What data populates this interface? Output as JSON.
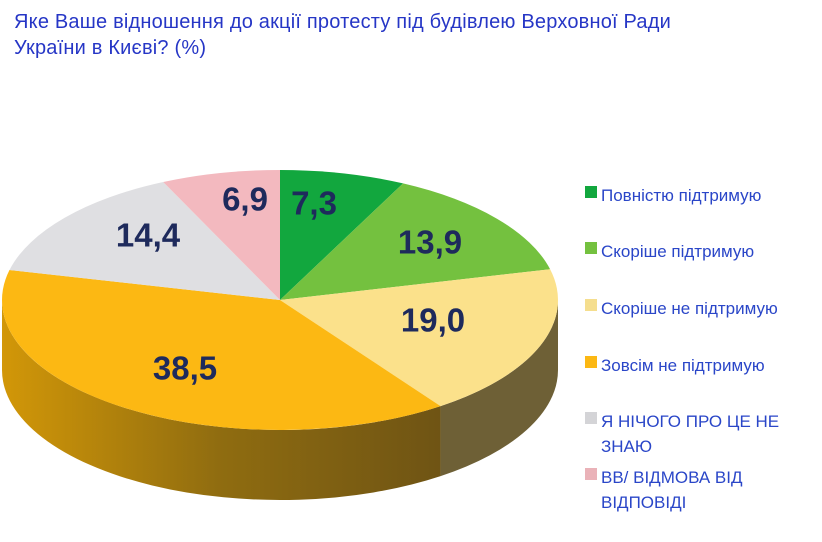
{
  "title": {
    "line1": "Яке Ваше відношення до акції протесту під будівлею Верховної Ради",
    "line2": "України в Києві? (%)",
    "color": "#2636C6"
  },
  "legend": {
    "position": "right",
    "text_color": "#2A46C8"
  },
  "chart_data": {
    "type": "pie",
    "title": "Яке Ваше відношення до акції протесту під будівлею Верховної Ради України в Києві? (%)",
    "unit": "%",
    "effect": "3d",
    "start_angle_deg": -90,
    "direction": "clockwise",
    "total": 100.0,
    "data_label_color": "#1E2A5C",
    "data_label_decimal_separator": ",",
    "slices": [
      {
        "label": "Повністю підтримую",
        "value": 7.3,
        "display": "7,3",
        "color": "#12A73E",
        "legend_color": "#12A73E"
      },
      {
        "label": "Скоріше підтримую",
        "value": 13.9,
        "display": "13,9",
        "color": "#74C13F",
        "legend_color": "#74C13F"
      },
      {
        "label": "Скоріше не підтримую",
        "value": 19.0,
        "display": "19,0",
        "color": "#FBE18B",
        "legend_color": "#F5DE8E",
        "wall_color": "#6E6036"
      },
      {
        "label": "Зовсім не підтримую",
        "value": 38.5,
        "display": "38,5",
        "color": "#FCB813",
        "legend_color": "#FCB813",
        "wall_gradient": [
          "#D29708",
          "#8F6C10",
          "#6F5414"
        ]
      },
      {
        "label": "Я НІЧОГО ПРО ЦЕ НЕ ЗНАЮ",
        "value": 14.4,
        "display": "14,4",
        "color": "#DFDFE2",
        "legend_color": "#D4D4D7"
      },
      {
        "label": "ВВ/ ВІДМОВА ВІД ВІДПОВІДІ",
        "value": 6.9,
        "display": "6,9",
        "color": "#F3B9BF",
        "legend_color": "#EAB2B8"
      }
    ]
  }
}
